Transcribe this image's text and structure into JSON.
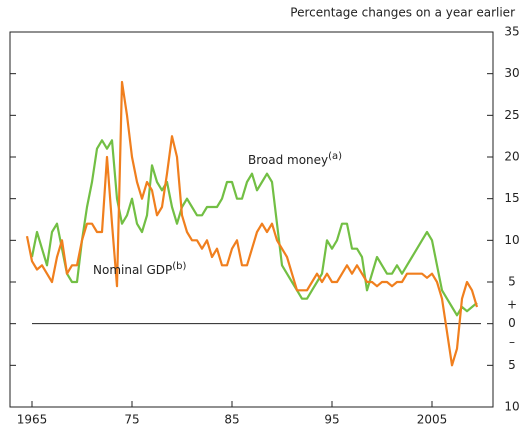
{
  "chart_data": {
    "type": "line",
    "ylabel": "Percentage changes on a year earlier",
    "x": [
      1964.5,
      1965,
      1965.5,
      1966,
      1966.5,
      1967,
      1967.5,
      1968,
      1968.5,
      1969,
      1969.5,
      1970,
      1970.5,
      1971,
      1971.5,
      1972,
      1972.5,
      1973,
      1973.5,
      1974,
      1974.5,
      1975,
      1975.5,
      1976,
      1976.5,
      1977,
      1977.5,
      1978,
      1978.5,
      1979,
      1979.5,
      1980,
      1980.5,
      1981,
      1981.5,
      1982,
      1982.5,
      1983,
      1983.5,
      1984,
      1984.5,
      1985,
      1985.5,
      1986,
      1986.5,
      1987,
      1987.5,
      1988,
      1988.5,
      1989,
      1989.5,
      1990,
      1990.5,
      1991,
      1991.5,
      1992,
      1992.5,
      1993,
      1993.5,
      1994,
      1994.5,
      1995,
      1995.5,
      1996,
      1996.5,
      1997,
      1997.5,
      1998,
      1998.5,
      1999,
      1999.5,
      2000,
      2000.5,
      2001,
      2001.5,
      2002,
      2002.5,
      2003,
      2003.5,
      2004,
      2004.5,
      2005,
      2005.5,
      2006,
      2006.5,
      2007,
      2007.5,
      2008,
      2008.5,
      2009,
      2009.5
    ],
    "series": [
      {
        "name": "Broad money",
        "note": "(a)",
        "color": "#72bf44",
        "values": [
          null,
          8,
          11,
          9,
          7,
          11,
          12,
          9,
          6,
          5,
          5,
          10,
          14,
          17,
          21,
          22,
          21,
          22,
          15,
          12,
          13,
          15,
          12,
          11,
          13,
          19,
          17,
          16,
          17,
          14,
          12,
          14,
          15,
          14,
          13,
          13,
          14,
          14,
          14,
          15,
          17,
          17,
          15,
          15,
          17,
          18,
          16,
          17,
          18,
          17,
          12,
          7,
          6,
          5,
          4,
          3,
          3,
          4,
          5,
          6,
          10,
          9,
          10,
          12,
          12,
          9,
          9,
          8,
          4,
          6,
          8,
          7,
          6,
          6,
          7,
          6,
          7,
          8,
          9,
          10,
          11,
          10,
          7,
          4,
          3,
          2,
          1,
          2,
          1.5,
          2,
          2.5
        ]
      },
      {
        "name": "Nominal GDP",
        "note": "(b)",
        "color": "#f07f1e",
        "values": [
          10.5,
          7.5,
          6.5,
          7,
          6,
          5,
          8,
          10,
          6,
          7,
          7,
          10,
          12,
          12,
          11,
          11,
          20,
          12,
          4.5,
          29,
          25,
          20,
          17,
          15,
          17,
          16,
          13,
          14,
          18,
          22.5,
          20,
          13,
          11,
          10,
          10,
          9,
          10,
          8,
          9,
          7,
          7,
          9,
          10,
          7,
          7,
          9,
          11,
          12,
          11,
          12,
          10,
          9,
          8,
          6,
          4,
          4,
          4,
          5,
          6,
          5,
          6,
          5,
          5,
          6,
          7,
          6,
          7,
          6,
          5,
          5,
          4.5,
          5,
          5,
          4.5,
          5,
          5,
          6,
          6,
          6,
          6,
          5.5,
          6,
          5,
          3,
          -1,
          -5,
          -3,
          3,
          5,
          4,
          2
        ]
      }
    ],
    "xlim": [
      1962.8,
      2011.1
    ],
    "xticks": [
      1965,
      {
        "value": 1975,
        "label": "75"
      },
      {
        "value": 1985,
        "label": "85"
      },
      {
        "value": 1995,
        "label": "95"
      },
      2005
    ],
    "ylim": [
      -10,
      35
    ],
    "yticks": [
      35,
      30,
      25,
      20,
      15,
      10,
      5,
      0,
      {
        "value": -5,
        "label": "5"
      },
      {
        "value": -10,
        "label": "10"
      }
    ],
    "sign_labels": [
      "+",
      "–"
    ],
    "zero_line": true
  }
}
